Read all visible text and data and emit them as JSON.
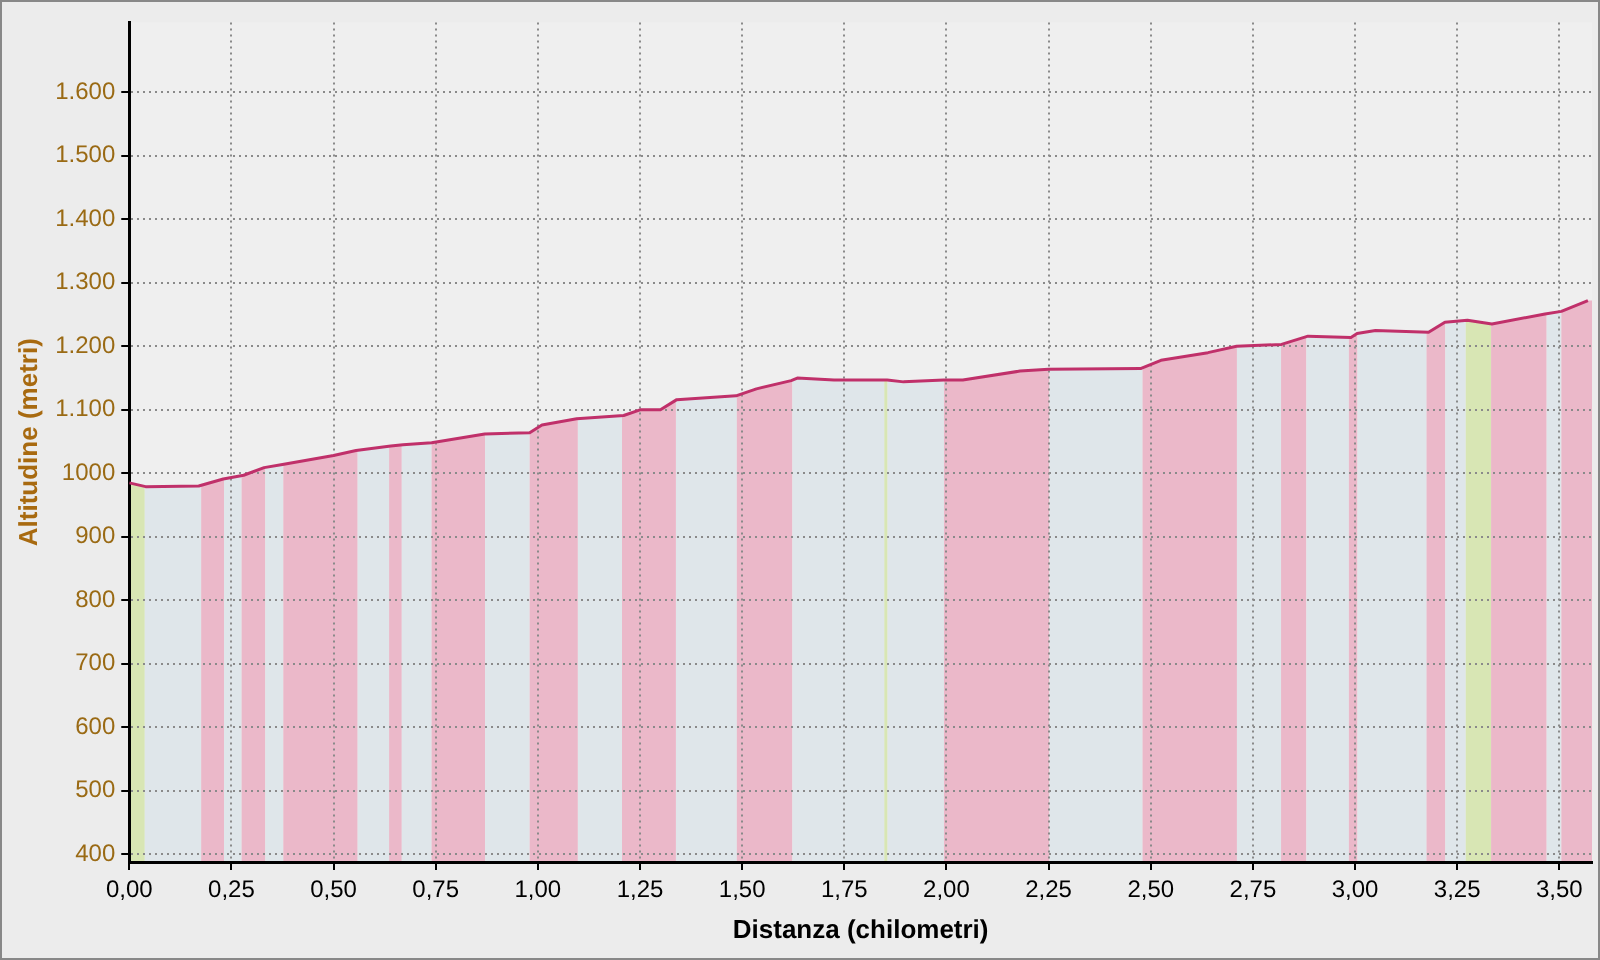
{
  "chart_data": {
    "type": "line",
    "xlabel": "Distanza (chilometri)",
    "ylabel": "Altitudine (metri)",
    "x": [
      0,
      0.04,
      0.17,
      0.23,
      0.28,
      0.33,
      0.375,
      0.5,
      0.555,
      0.64,
      0.67,
      0.74,
      0.87,
      0.98,
      1.01,
      1.095,
      1.21,
      1.25,
      1.3,
      1.34,
      1.485,
      1.535,
      1.62,
      1.635,
      1.725,
      1.757,
      1.855,
      1.895,
      1.994,
      2.04,
      2.18,
      2.25,
      2.475,
      2.525,
      2.64,
      2.71,
      2.82,
      2.885,
      2.99,
      3.005,
      3.05,
      3.18,
      3.22,
      3.275,
      3.335,
      3.465,
      3.505,
      3.57
    ],
    "series": [
      {
        "color": "#c0306a",
        "values": [
          985,
          979,
          980,
          991,
          997,
          1009,
          1014,
          1028,
          1036,
          1043,
          1045,
          1048,
          1062,
          1064,
          1076,
          1086,
          1091,
          1100,
          1100,
          1116,
          1122,
          1133,
          1146,
          1150,
          1147,
          1147,
          1147,
          1144,
          1147,
          1147,
          1161,
          1164,
          1165,
          1178,
          1190,
          1200,
          1203,
          1216,
          1214,
          1220,
          1225,
          1222,
          1238,
          1241,
          1235,
          1251,
          1255,
          1272
        ]
      }
    ],
    "xlim": [
      0,
      3.58
    ],
    "ylim": [
      388,
      1710
    ],
    "xticks": [
      {
        "value": 0,
        "label": "0,00"
      },
      {
        "value": 0.25,
        "label": "0,25"
      },
      {
        "value": 0.5,
        "label": "0,50"
      },
      {
        "value": 0.75,
        "label": "0,75"
      },
      {
        "value": 1,
        "label": "1,00"
      },
      {
        "value": 1.25,
        "label": "1,25"
      },
      {
        "value": 1.5,
        "label": "1,50"
      },
      {
        "value": 1.75,
        "label": "1,75"
      },
      {
        "value": 2,
        "label": "2,00"
      },
      {
        "value": 2.25,
        "label": "2,25"
      },
      {
        "value": 2.5,
        "label": "2,50"
      },
      {
        "value": 2.75,
        "label": "2,75"
      },
      {
        "value": 3,
        "label": "3,00"
      },
      {
        "value": 3.25,
        "label": "3,25"
      },
      {
        "value": 3.5,
        "label": "3,50"
      }
    ],
    "yticks": [
      400,
      500,
      600,
      700,
      800,
      900,
      1000,
      {
        "value": 1100,
        "label": "1.100"
      },
      {
        "value": 1200,
        "label": "1.200"
      },
      {
        "value": 1300,
        "label": "1.300"
      },
      {
        "value": 1400,
        "label": "1.400"
      },
      {
        "value": 1500,
        "label": "1.500"
      },
      {
        "value": 1600,
        "label": "1.600"
      }
    ],
    "grid": true,
    "legend": false,
    "marker": "none",
    "line_style": "solid",
    "bands": [
      {
        "axis": "x",
        "from": 0,
        "to": 0.038,
        "color": "#d8e6b4"
      },
      {
        "axis": "x",
        "from": 0.038,
        "to": 0.176,
        "color": "#dfe6ea"
      },
      {
        "axis": "x",
        "from": 0.176,
        "to": 0.232,
        "color": "#ebb8c9"
      },
      {
        "axis": "x",
        "from": 0.232,
        "to": 0.275,
        "color": "#dfe6ea"
      },
      {
        "axis": "x",
        "from": 0.275,
        "to": 0.333,
        "color": "#ebb8c9"
      },
      {
        "axis": "x",
        "from": 0.333,
        "to": 0.377,
        "color": "#dfe6ea"
      },
      {
        "axis": "x",
        "from": 0.377,
        "to": 0.559,
        "color": "#ebb8c9"
      },
      {
        "axis": "x",
        "from": 0.559,
        "to": 0.636,
        "color": "#dfe6ea"
      },
      {
        "axis": "x",
        "from": 0.636,
        "to": 0.667,
        "color": "#ebb8c9"
      },
      {
        "axis": "x",
        "from": 0.667,
        "to": 0.74,
        "color": "#dfe6ea"
      },
      {
        "axis": "x",
        "from": 0.74,
        "to": 0.871,
        "color": "#ebb8c9"
      },
      {
        "axis": "x",
        "from": 0.871,
        "to": 0.98,
        "color": "#dfe6ea"
      },
      {
        "axis": "x",
        "from": 0.98,
        "to": 1.098,
        "color": "#ebb8c9"
      },
      {
        "axis": "x",
        "from": 1.098,
        "to": 1.206,
        "color": "#dfe6ea"
      },
      {
        "axis": "x",
        "from": 1.206,
        "to": 1.338,
        "color": "#ebb8c9"
      },
      {
        "axis": "x",
        "from": 1.338,
        "to": 1.487,
        "color": "#dfe6ea"
      },
      {
        "axis": "x",
        "from": 1.487,
        "to": 1.623,
        "color": "#ebb8c9"
      },
      {
        "axis": "x",
        "from": 1.623,
        "to": 1.848,
        "color": "#dfe6ea"
      },
      {
        "axis": "x",
        "from": 1.848,
        "to": 1.856,
        "color": "#d8e6b4"
      },
      {
        "axis": "x",
        "from": 1.856,
        "to": 1.994,
        "color": "#dfe6ea"
      },
      {
        "axis": "x",
        "from": 1.994,
        "to": 2.252,
        "color": "#ebb8c9"
      },
      {
        "axis": "x",
        "from": 2.252,
        "to": 2.48,
        "color": "#dfe6ea"
      },
      {
        "axis": "x",
        "from": 2.48,
        "to": 2.711,
        "color": "#ebb8c9"
      },
      {
        "axis": "x",
        "from": 2.711,
        "to": 2.819,
        "color": "#dfe6ea"
      },
      {
        "axis": "x",
        "from": 2.819,
        "to": 2.881,
        "color": "#ebb8c9"
      },
      {
        "axis": "x",
        "from": 2.881,
        "to": 2.985,
        "color": "#dfe6ea"
      },
      {
        "axis": "x",
        "from": 2.985,
        "to": 3.006,
        "color": "#ebb8c9"
      },
      {
        "axis": "x",
        "from": 3.006,
        "to": 3.175,
        "color": "#dfe6ea"
      },
      {
        "axis": "x",
        "from": 3.175,
        "to": 3.221,
        "color": "#ebb8c9"
      },
      {
        "axis": "x",
        "from": 3.221,
        "to": 3.271,
        "color": "#dfe6ea"
      },
      {
        "axis": "x",
        "from": 3.271,
        "to": 3.333,
        "color": "#d8e6b4"
      },
      {
        "axis": "x",
        "from": 3.333,
        "to": 3.469,
        "color": "#ebb8c9"
      },
      {
        "axis": "x",
        "from": 3.469,
        "to": 3.505,
        "color": "#dfe6ea"
      },
      {
        "axis": "x",
        "from": 3.505,
        "to": 3.58,
        "color": "#ebb8c9"
      }
    ]
  }
}
